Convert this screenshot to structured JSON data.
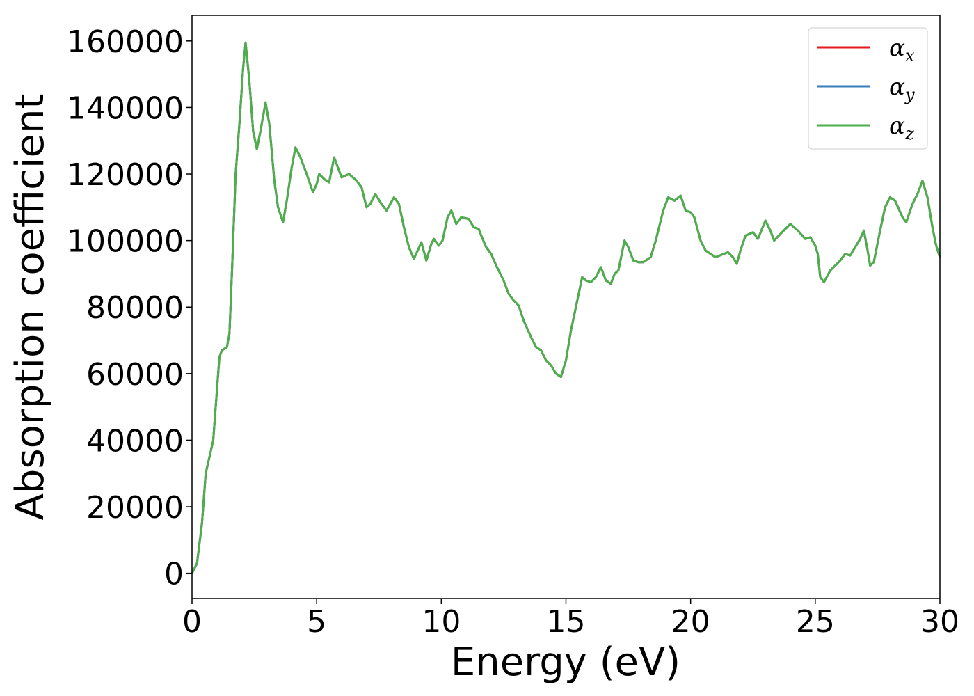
{
  "chart_data": {
    "type": "line",
    "xlabel": "Energy (eV)",
    "ylabel": "Absorption coefficient",
    "x": [
      0,
      0.2,
      0.4,
      0.55,
      0.7,
      0.85,
      1.0,
      1.1,
      1.2,
      1.4,
      1.5,
      1.6,
      1.75,
      1.9,
      2.05,
      2.15,
      2.3,
      2.45,
      2.6,
      2.75,
      2.95,
      3.1,
      3.3,
      3.45,
      3.65,
      3.8,
      4.0,
      4.15,
      4.35,
      4.6,
      4.85,
      5.0,
      5.1,
      5.3,
      5.5,
      5.7,
      5.85,
      6.0,
      6.3,
      6.6,
      6.8,
      7.0,
      7.15,
      7.35,
      7.6,
      7.8,
      8.1,
      8.3,
      8.5,
      8.7,
      8.9,
      9.05,
      9.2,
      9.4,
      9.6,
      9.7,
      9.9,
      10.05,
      10.25,
      10.4,
      10.6,
      10.8,
      11.1,
      11.3,
      11.5,
      11.6,
      11.8,
      12.0,
      12.2,
      12.5,
      12.7,
      12.9,
      13.1,
      13.3,
      13.6,
      13.8,
      14.0,
      14.2,
      14.4,
      14.6,
      14.8,
      15.0,
      15.2,
      15.4,
      15.65,
      15.8,
      16.0,
      16.2,
      16.4,
      16.6,
      16.8,
      16.95,
      17.1,
      17.35,
      17.5,
      17.7,
      17.9,
      18.1,
      18.4,
      18.6,
      18.9,
      19.1,
      19.35,
      19.6,
      19.8,
      20.0,
      20.15,
      20.4,
      20.6,
      21.0,
      21.5,
      21.7,
      21.85,
      22.0,
      22.2,
      22.5,
      22.7,
      23.0,
      23.2,
      23.35,
      23.6,
      23.8,
      24.0,
      24.3,
      24.6,
      24.8,
      25.0,
      25.1,
      25.2,
      25.35,
      25.6,
      25.8,
      26.0,
      26.2,
      26.4,
      26.6,
      26.8,
      26.95,
      27.1,
      27.2,
      27.35,
      27.6,
      27.8,
      28.0,
      28.2,
      28.5,
      28.65,
      28.9,
      29.1,
      29.3,
      29.5,
      29.7,
      29.85,
      30.0
    ],
    "series": [
      {
        "name": "αx",
        "color": "#e41a1c",
        "values": [
          0,
          3000,
          15000,
          30000,
          35000,
          40000,
          55000,
          65000,
          67000,
          68000,
          72000,
          90000,
          120000,
          135000,
          152000,
          159500,
          148000,
          133000,
          127500,
          133000,
          141500,
          135000,
          118000,
          110000,
          105500,
          112000,
          122000,
          128000,
          125000,
          120000,
          114500,
          117000,
          120000,
          118500,
          117500,
          125000,
          122000,
          119000,
          120000,
          118000,
          116000,
          110000,
          111000,
          114000,
          111000,
          109000,
          113000,
          111000,
          104000,
          98000,
          94500,
          97000,
          99500,
          94000,
          99000,
          100500,
          98500,
          100000,
          107000,
          109000,
          105000,
          107000,
          106500,
          104000,
          103500,
          101500,
          98000,
          96000,
          92500,
          88000,
          84000,
          82000,
          80500,
          76000,
          71000,
          68000,
          67000,
          64000,
          62500,
          60000,
          59000,
          64000,
          73000,
          80000,
          89000,
          88000,
          87500,
          89000,
          92000,
          88000,
          87000,
          90000,
          91000,
          100000,
          98000,
          94000,
          93500,
          93500,
          95000,
          100000,
          109000,
          113000,
          112000,
          113500,
          109000,
          108500,
          107000,
          100000,
          97000,
          95000,
          96500,
          95000,
          93000,
          97000,
          101500,
          102500,
          100500,
          106000,
          103000,
          100000,
          102000,
          103500,
          105000,
          103000,
          100500,
          101000,
          98500,
          96000,
          89000,
          87500,
          91000,
          92500,
          94000,
          96000,
          95500,
          98000,
          100500,
          103000,
          97000,
          92500,
          93500,
          103000,
          110000,
          113000,
          112000,
          107000,
          105500,
          111000,
          114000,
          118000,
          113000,
          104000,
          98500,
          95000
        ]
      },
      {
        "name": "αy",
        "color": "#377eb8",
        "values": [
          0,
          3000,
          15000,
          30000,
          35000,
          40000,
          55000,
          65000,
          67000,
          68000,
          72000,
          90000,
          120000,
          135000,
          152000,
          159500,
          148000,
          133000,
          127500,
          133000,
          141500,
          135000,
          118000,
          110000,
          105500,
          112000,
          122000,
          128000,
          125000,
          120000,
          114500,
          117000,
          120000,
          118500,
          117500,
          125000,
          122000,
          119000,
          120000,
          118000,
          116000,
          110000,
          111000,
          114000,
          111000,
          109000,
          113000,
          111000,
          104000,
          98000,
          94500,
          97000,
          99500,
          94000,
          99000,
          100500,
          98500,
          100000,
          107000,
          109000,
          105000,
          107000,
          106500,
          104000,
          103500,
          101500,
          98000,
          96000,
          92500,
          88000,
          84000,
          82000,
          80500,
          76000,
          71000,
          68000,
          67000,
          64000,
          62500,
          60000,
          59000,
          64000,
          73000,
          80000,
          89000,
          88000,
          87500,
          89000,
          92000,
          88000,
          87000,
          90000,
          91000,
          100000,
          98000,
          94000,
          93500,
          93500,
          95000,
          100000,
          109000,
          113000,
          112000,
          113500,
          109000,
          108500,
          107000,
          100000,
          97000,
          95000,
          96500,
          95000,
          93000,
          97000,
          101500,
          102500,
          100500,
          106000,
          103000,
          100000,
          102000,
          103500,
          105000,
          103000,
          100500,
          101000,
          98500,
          96000,
          89000,
          87500,
          91000,
          92500,
          94000,
          96000,
          95500,
          98000,
          100500,
          103000,
          97000,
          92500,
          93500,
          103000,
          110000,
          113000,
          112000,
          107000,
          105500,
          111000,
          114000,
          118000,
          113000,
          104000,
          98500,
          95000
        ]
      },
      {
        "name": "αz",
        "color": "#4daf4a",
        "values": [
          0,
          3000,
          15000,
          30000,
          35000,
          40000,
          55000,
          65000,
          67000,
          68000,
          72000,
          90000,
          120000,
          135000,
          152000,
          159500,
          148000,
          133000,
          127500,
          133000,
          141500,
          135000,
          118000,
          110000,
          105500,
          112000,
          122000,
          128000,
          125000,
          120000,
          114500,
          117000,
          120000,
          118500,
          117500,
          125000,
          122000,
          119000,
          120000,
          118000,
          116000,
          110000,
          111000,
          114000,
          111000,
          109000,
          113000,
          111000,
          104000,
          98000,
          94500,
          97000,
          99500,
          94000,
          99000,
          100500,
          98500,
          100000,
          107000,
          109000,
          105000,
          107000,
          106500,
          104000,
          103500,
          101500,
          98000,
          96000,
          92500,
          88000,
          84000,
          82000,
          80500,
          76000,
          71000,
          68000,
          67000,
          64000,
          62500,
          60000,
          59000,
          64000,
          73000,
          80000,
          89000,
          88000,
          87500,
          89000,
          92000,
          88000,
          87000,
          90000,
          91000,
          100000,
          98000,
          94000,
          93500,
          93500,
          95000,
          100000,
          109000,
          113000,
          112000,
          113500,
          109000,
          108500,
          107000,
          100000,
          97000,
          95000,
          96500,
          95000,
          93000,
          97000,
          101500,
          102500,
          100500,
          106000,
          103000,
          100000,
          102000,
          103500,
          105000,
          103000,
          100500,
          101000,
          98500,
          96000,
          89000,
          87500,
          91000,
          92500,
          94000,
          96000,
          95500,
          98000,
          100500,
          103000,
          97000,
          92500,
          93500,
          103000,
          110000,
          113000,
          112000,
          107000,
          105500,
          111000,
          114000,
          118000,
          113000,
          104000,
          98500,
          95000
        ]
      }
    ],
    "xlim": [
      0,
      30
    ],
    "xticks": [
      0,
      5,
      10,
      15,
      20,
      25,
      30
    ],
    "ylim": [
      -7600,
      167700
    ],
    "yticks": [
      0,
      20000,
      40000,
      60000,
      80000,
      100000,
      120000,
      140000,
      160000
    ],
    "grid": false,
    "legend": "upper right"
  }
}
